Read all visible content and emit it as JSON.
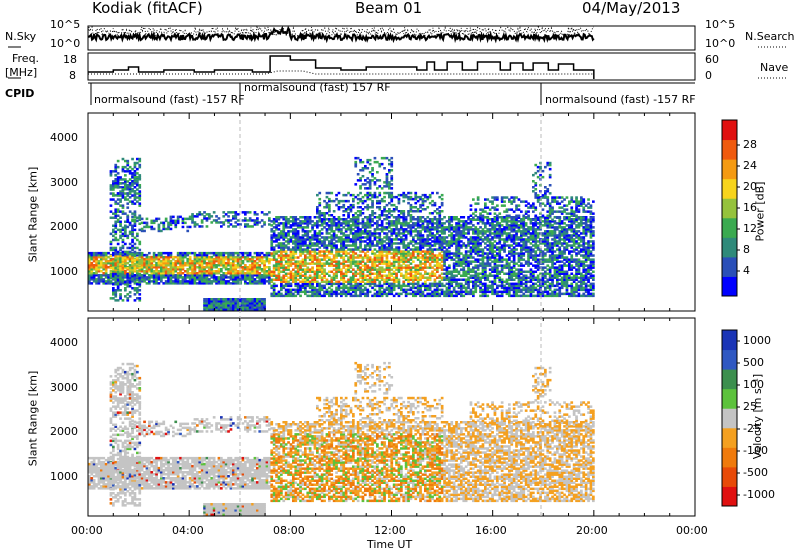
{
  "header": {
    "station": "Kodiak (fitACF)",
    "beam": "Beam 01",
    "date": "04/May/2013"
  },
  "side_labels": {
    "nsky": "N.Sky",
    "freq": "Freq.",
    "freq_unit": "[MHz]",
    "cpid": "CPID",
    "nsearch": "N.Search",
    "nave": "Nave"
  },
  "cpid_segments": [
    {
      "text": "normalsound (fast) -157 RF",
      "start_hour": 0.0,
      "end_hour": 6.0
    },
    {
      "text": "normalsound (fast) 157 RF",
      "start_hour": 6.0,
      "end_hour": 18.0
    },
    {
      "text": "normalsound (fast) -157 RF",
      "start_hour": 18.0,
      "end_hour": 24.0
    }
  ],
  "chart_data": [
    {
      "type": "line",
      "name": "noise-panel",
      "yticks_left": [
        "10^5",
        "10^0"
      ],
      "yticks_right": [
        "10^5",
        "10^0"
      ]
    },
    {
      "type": "line",
      "name": "freq-nave-panel",
      "yticks_left": [
        "18",
        "8"
      ],
      "yticks_right": [
        "60",
        "0"
      ]
    },
    {
      "type": "heatmap",
      "name": "power-panel",
      "ylabel": "Slant Range [km]",
      "ylim": [
        180,
        4600
      ],
      "yticks": [
        1000,
        2000,
        3000,
        4000
      ],
      "colorbar": {
        "label": "Power [dB]",
        "ticks": [
          "28",
          "24",
          "20",
          "16",
          "12",
          "8",
          "4"
        ],
        "colors": [
          "#0000ff",
          "#2a4fb8",
          "#2f8a7a",
          "#3aaa50",
          "#95c23c",
          "#f7d41c",
          "#f49a12",
          "#ef5a0e",
          "#e01010"
        ]
      }
    },
    {
      "type": "heatmap",
      "name": "velocity-panel",
      "ylabel": "Slant Range [km]",
      "xlabel": "Time UT",
      "ylim": [
        180,
        4600
      ],
      "yticks": [
        1000,
        2000,
        3000,
        4000
      ],
      "xticks": [
        "00:00",
        "04:00",
        "08:00",
        "12:00",
        "16:00",
        "20:00",
        "00:00"
      ],
      "colorbar": {
        "label": "Velocity [m s⁻¹]",
        "ticks": [
          "1000",
          "500",
          "100",
          "25",
          "-25",
          "-100",
          "-500",
          "-1000"
        ],
        "colors": [
          "#1a34b6",
          "#2f58c2",
          "#3c8f4e",
          "#5cc23c",
          "#c4c4c4",
          "#f4a020",
          "#ef7a0c",
          "#e84a08",
          "#e01010"
        ]
      }
    }
  ]
}
